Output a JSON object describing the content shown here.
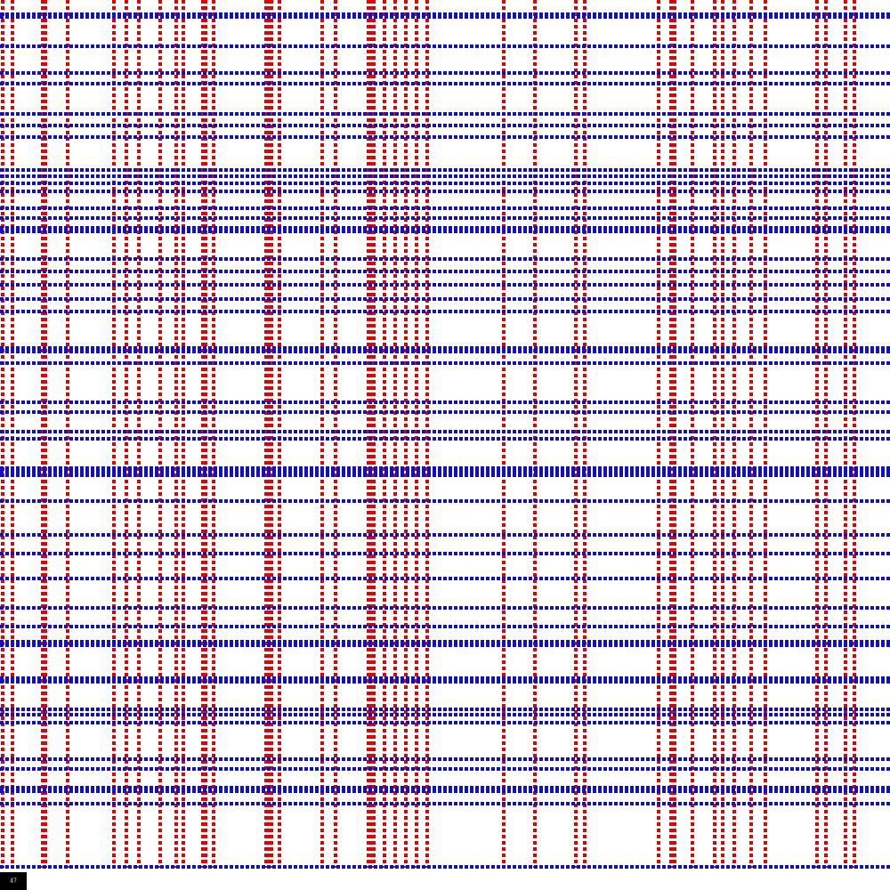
{
  "badge": {
    "label": "47"
  }
}
